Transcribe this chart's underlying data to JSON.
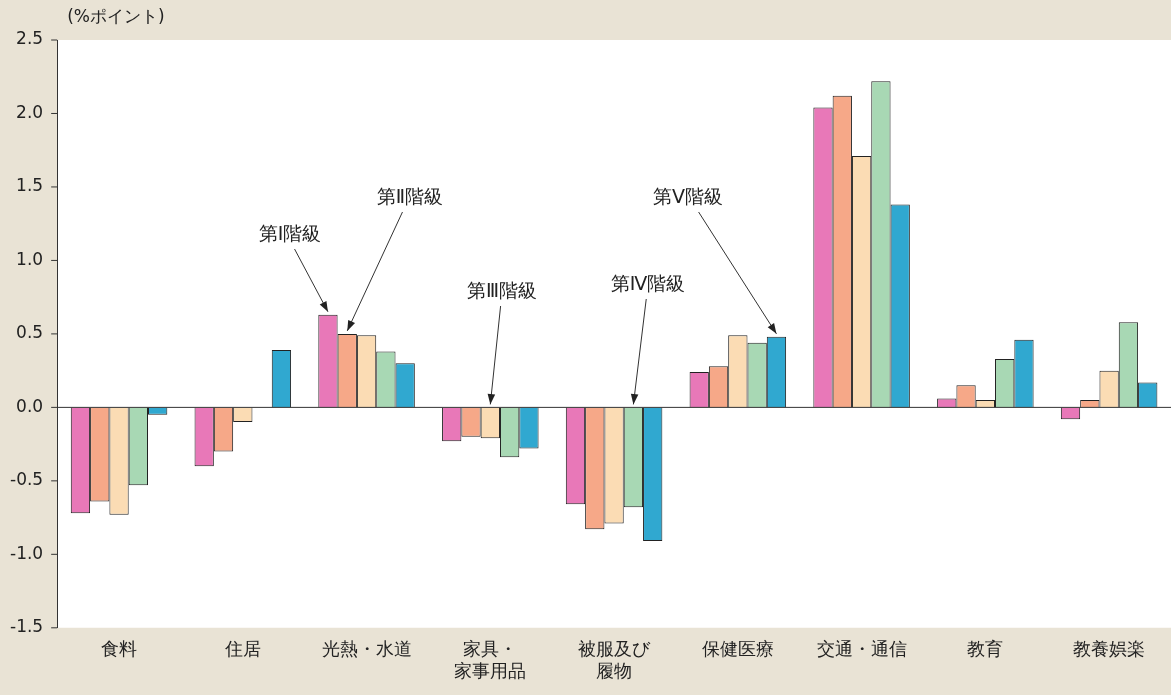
{
  "chart_data": {
    "type": "bar",
    "ylabel": "(%ポイント)",
    "categories": [
      "食料",
      "住居",
      "光熱・水道",
      "家具・家事用品",
      "被服及び履物",
      "保健医療",
      "交通・通信",
      "教育",
      "教養娯楽"
    ],
    "series": [
      {
        "name": "第Ⅰ階級",
        "color": "#e878b8",
        "values": [
          -0.72,
          -0.4,
          0.63,
          -0.23,
          -0.66,
          0.24,
          2.04,
          0.06,
          -0.08
        ]
      },
      {
        "name": "第Ⅱ階級",
        "color": "#f6a888",
        "values": [
          -0.64,
          -0.3,
          0.5,
          -0.2,
          -0.83,
          0.28,
          2.12,
          0.15,
          0.05
        ]
      },
      {
        "name": "第Ⅲ階級",
        "color": "#fbdcb4",
        "values": [
          -0.73,
          -0.1,
          0.49,
          -0.21,
          -0.79,
          0.49,
          1.71,
          0.05,
          0.25
        ]
      },
      {
        "name": "第Ⅳ階級",
        "color": "#a8d8b4",
        "values": [
          -0.53,
          null,
          0.38,
          -0.34,
          -0.68,
          0.44,
          2.22,
          0.33,
          0.58
        ]
      },
      {
        "name": "第Ⅴ階級",
        "color": "#30a8d0",
        "values": [
          -0.05,
          0.39,
          0.3,
          -0.28,
          -0.91,
          0.48,
          1.38,
          0.46,
          0.17
        ]
      }
    ],
    "ylim": [
      -1.5,
      2.5
    ],
    "yticks": [
      {
        "value": -1.5,
        "label": "-1.5"
      },
      {
        "value": -1,
        "label": "-1.0"
      },
      {
        "value": -0.5,
        "label": "-0.5"
      },
      {
        "value": 0,
        "label": "0.0"
      },
      {
        "value": 0.5,
        "label": "0.5"
      },
      {
        "value": 1,
        "label": "1.0"
      },
      {
        "value": 1.5,
        "label": "1.5"
      },
      {
        "value": 2,
        "label": "2.0"
      },
      {
        "value": 2.5,
        "label": "2.5"
      }
    ],
    "ref_lines": [
      {
        "axis": "y",
        "value": 0,
        "color": "#333333"
      }
    ],
    "grid": false,
    "legend": false
  }
}
